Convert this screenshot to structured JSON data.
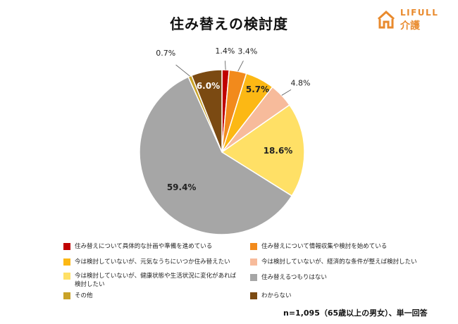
{
  "title": "住み替えの検討度",
  "logo": {
    "brand": "LIFULL",
    "sub": "介護",
    "color": "#e98a2d"
  },
  "footnote": "n=1,095（65歳以上の男女）、単一回答",
  "chart_data": {
    "type": "pie",
    "title": "住み替えの検討度",
    "legend_position": "bottom",
    "series": [
      {
        "name": "住み替えについて具体的な計画や準備を進めている",
        "value": 1.4,
        "label": "1.4%",
        "color": "#c00000"
      },
      {
        "name": "住み替えについて情報収集や検討を始めている",
        "value": 3.4,
        "label": "3.4%",
        "color": "#f28a1c"
      },
      {
        "name": "今は検討していないが、元気なうちにいつか住み替えたい",
        "value": 5.7,
        "label": "5.7%",
        "color": "#fcb814"
      },
      {
        "name": "今は検討していないが、経済的な条件が整えば検討したい",
        "value": 4.8,
        "label": "4.8%",
        "color": "#f7bb9b"
      },
      {
        "name": "今は検討していないが、健康状態や生活状況に変化があれば検討したい",
        "value": 18.6,
        "label": "18.6%",
        "color": "#ffe066"
      },
      {
        "name": "住み替えるつもりはない",
        "value": 59.4,
        "label": "59.4%",
        "color": "#a6a6a6"
      },
      {
        "name": "その他",
        "value": 0.7,
        "label": "0.7%",
        "color": "#c9a227"
      },
      {
        "name": "わからない",
        "value": 6.0,
        "label": "6.0%",
        "color": "#7b4a12"
      }
    ]
  }
}
